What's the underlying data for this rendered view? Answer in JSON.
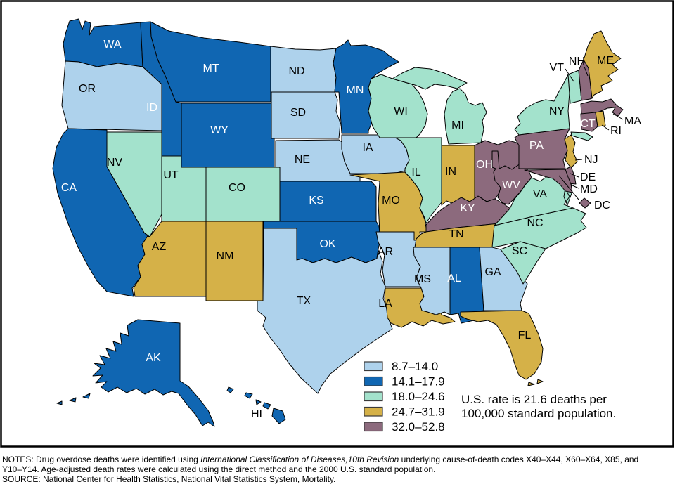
{
  "figure": {
    "type": "choropleth-us-map",
    "legend": [
      {
        "range": "8.7–14.0",
        "color": "#aed2ec"
      },
      {
        "range": "14.1–17.9",
        "color": "#1066b2"
      },
      {
        "range": "18.0–24.6",
        "color": "#a3e2cc"
      },
      {
        "range": "24.7–31.9",
        "color": "#d5b148"
      },
      {
        "range": "32.0–52.8",
        "color": "#8c6a7d"
      }
    ],
    "annotation_line1": "U.S. rate is 21.6 deaths per",
    "annotation_line2": "100,000 standard population.",
    "outline_color": "#000000"
  },
  "map": {
    "states": [
      {
        "id": "WA",
        "cat": 1
      },
      {
        "id": "OR",
        "cat": 0
      },
      {
        "id": "CA",
        "cat": 1
      },
      {
        "id": "NV",
        "cat": 2
      },
      {
        "id": "ID",
        "cat": 1
      },
      {
        "id": "MT",
        "cat": 1
      },
      {
        "id": "WY",
        "cat": 1
      },
      {
        "id": "UT",
        "cat": 2
      },
      {
        "id": "CO",
        "cat": 2
      },
      {
        "id": "AZ",
        "cat": 3
      },
      {
        "id": "NM",
        "cat": 3
      },
      {
        "id": "ND",
        "cat": 0
      },
      {
        "id": "SD",
        "cat": 0
      },
      {
        "id": "NE",
        "cat": 0
      },
      {
        "id": "KS",
        "cat": 1
      },
      {
        "id": "OK",
        "cat": 1
      },
      {
        "id": "TX",
        "cat": 0
      },
      {
        "id": "MN",
        "cat": 1
      },
      {
        "id": "IA",
        "cat": 0
      },
      {
        "id": "MO",
        "cat": 3
      },
      {
        "id": "AR",
        "cat": 0
      },
      {
        "id": "LA",
        "cat": 3
      },
      {
        "id": "WI",
        "cat": 2
      },
      {
        "id": "MI",
        "cat": 2
      },
      {
        "id": "IL",
        "cat": 2
      },
      {
        "id": "IN",
        "cat": 3
      },
      {
        "id": "OH",
        "cat": 4
      },
      {
        "id": "KY",
        "cat": 4
      },
      {
        "id": "WV",
        "cat": 4
      },
      {
        "id": "TN",
        "cat": 3
      },
      {
        "id": "MS",
        "cat": 0
      },
      {
        "id": "AL",
        "cat": 1
      },
      {
        "id": "GA",
        "cat": 0
      },
      {
        "id": "FL",
        "cat": 3
      },
      {
        "id": "SC",
        "cat": 2
      },
      {
        "id": "NC",
        "cat": 2
      },
      {
        "id": "VA",
        "cat": 2
      },
      {
        "id": "PA",
        "cat": 4
      },
      {
        "id": "NY",
        "cat": 2
      },
      {
        "id": "VT",
        "cat": 2
      },
      {
        "id": "NH",
        "cat": 4
      },
      {
        "id": "ME",
        "cat": 3
      },
      {
        "id": "MA",
        "cat": 4
      },
      {
        "id": "CT",
        "cat": 4
      },
      {
        "id": "RI",
        "cat": 3
      },
      {
        "id": "NJ",
        "cat": 3
      },
      {
        "id": "DE",
        "cat": 4
      },
      {
        "id": "MD",
        "cat": 4
      },
      {
        "id": "DC",
        "cat": 4
      },
      {
        "id": "AK",
        "cat": 1
      },
      {
        "id": "HI",
        "cat": 1
      }
    ]
  },
  "notes": {
    "line1_pre": "NOTES: Drug overdose deaths were identified using ",
    "line1_italic": "International Classification of Diseases,10th Revision",
    "line1_post": " underlying cause-of-death codes X40–X44, X60–X64, X85, and",
    "line2": "Y10–Y14. Age-adjusted death rates were calculated using the direct method and the 2000 U.S. standard population.",
    "line3": "SOURCE: National Center for Health Statistics, National Vital Statistics System, Mortality."
  }
}
